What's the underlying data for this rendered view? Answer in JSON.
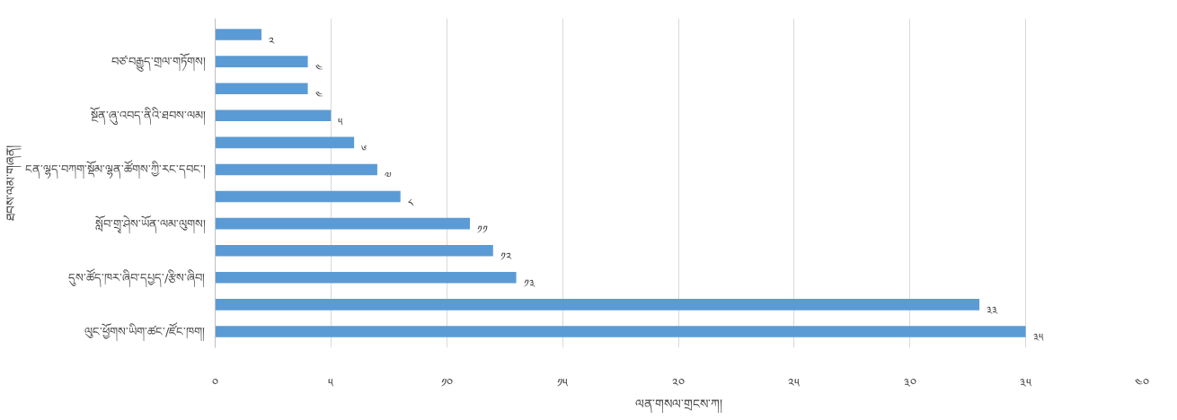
{
  "chart_data": {
    "type": "bar",
    "orientation": "horizontal",
    "xlabel": "ལན་གསལ་གྲངས་ཀ།",
    "ylabel": "ཐབས་ལམ་གཞན།",
    "categories": [
      null,
      "བཙ་བརྒྱུད་གྲལ་གཏོགས།",
      null,
      "སྔོན་ཞུ་འབད་ནིའི་ཐབས་ལམ།",
      null,
      "ངན་ལྷད་བཀག་སྡོམ་ལྷན་ཚོགས་ཀྱི་རང་དབང་།",
      null,
      "སློབ་གྲྭ་ཤེས་ཡོན་ལམ་ལུགས།",
      null,
      "དུས་ཚོད་ཁར་ཞིབ་དཔྱད་/རྩིས་ཞིབ།",
      null,
      "ལུང་ཕྱོགས་ཡིག་ཚང་/ཛོང་ཁག།"
    ],
    "values": [
      2,
      4,
      4,
      5,
      6,
      7,
      8,
      11,
      12,
      13,
      33,
      35
    ],
    "value_labels": [
      "༢",
      "༤",
      "༤",
      "༥",
      "༦",
      "༧",
      "༨",
      "༡༡",
      "༡༢",
      "༡༣",
      "༣༣",
      "༣༥"
    ],
    "color": "#5b9bd5",
    "xlim": [
      0,
      40
    ],
    "xticks": [
      {
        "value": 0,
        "label": "༠"
      },
      {
        "value": 5,
        "label": "༥"
      },
      {
        "value": 10,
        "label": "༡༠"
      },
      {
        "value": 15,
        "label": "༡༥"
      },
      {
        "value": 20,
        "label": "༢༠"
      },
      {
        "value": 25,
        "label": "༢༥"
      },
      {
        "value": 30,
        "label": "༣༠"
      },
      {
        "value": 35,
        "label": "༣༥"
      },
      {
        "value": 40,
        "label": "༤༠"
      }
    ],
    "grid": "x"
  }
}
